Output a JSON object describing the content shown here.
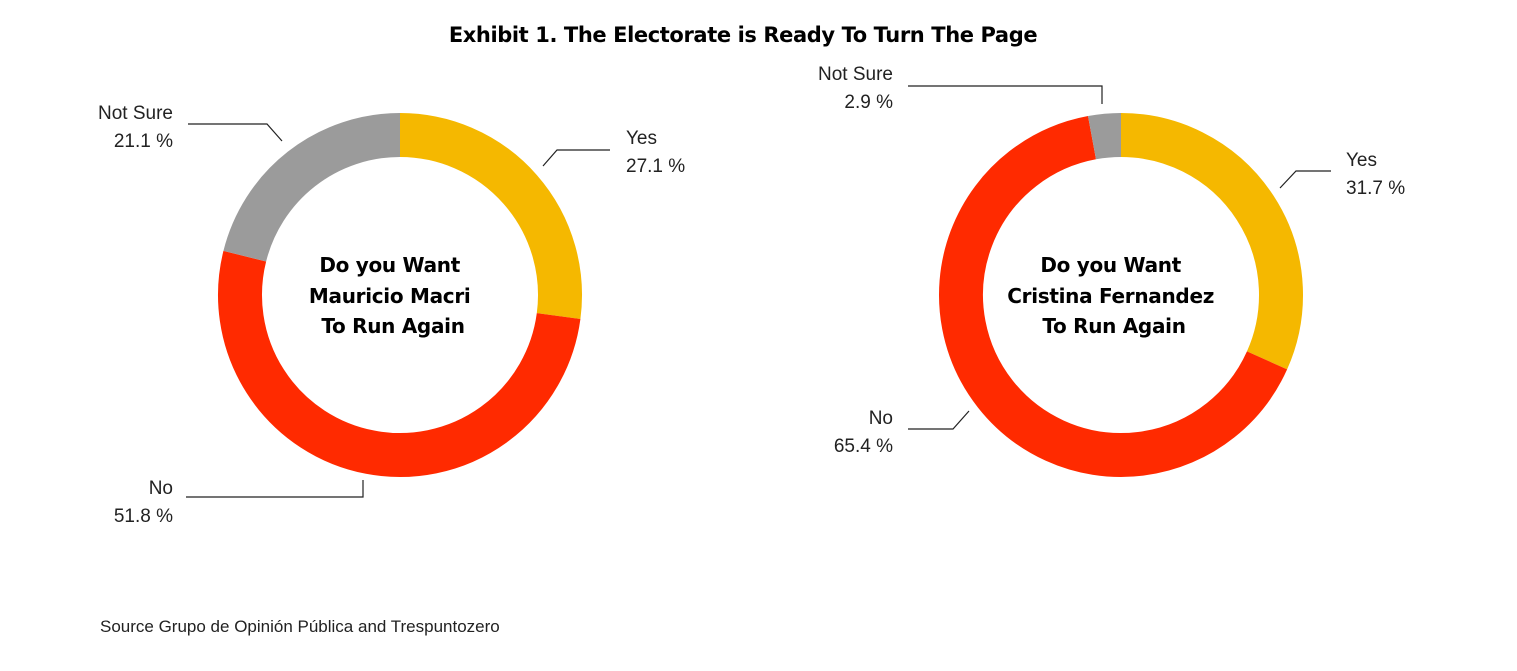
{
  "title": "Exhibit 1. The Electorate is Ready To Turn The Page",
  "source": "Source Grupo de Opinión Pública and Trespuntozero",
  "colors": {
    "yes": "#f5b800",
    "no": "#ff2a00",
    "not_sure": "#9b9b9b"
  },
  "chart_data": [
    {
      "type": "pie",
      "variant": "donut",
      "center_text": [
        "Do you Want",
        "Mauricio Macri",
        "To Run Again"
      ],
      "slices": [
        {
          "key": "yes",
          "label": "Yes",
          "value": 27.1,
          "value_text": "27.1 %"
        },
        {
          "key": "no",
          "label": "No",
          "value": 51.8,
          "value_text": "51.8 %"
        },
        {
          "key": "not_sure",
          "label": "Not Sure",
          "value": 21.1,
          "value_text": "21.1 %"
        }
      ]
    },
    {
      "type": "pie",
      "variant": "donut",
      "center_text": [
        "Do you Want",
        "Cristina Fernandez",
        "To Run Again"
      ],
      "slices": [
        {
          "key": "yes",
          "label": "Yes",
          "value": 31.7,
          "value_text": "31.7 %"
        },
        {
          "key": "no",
          "label": "No",
          "value": 65.4,
          "value_text": "65.4 %"
        },
        {
          "key": "not_sure",
          "label": "Not Sure",
          "value": 2.9,
          "value_text": "2.9 %"
        }
      ]
    }
  ]
}
